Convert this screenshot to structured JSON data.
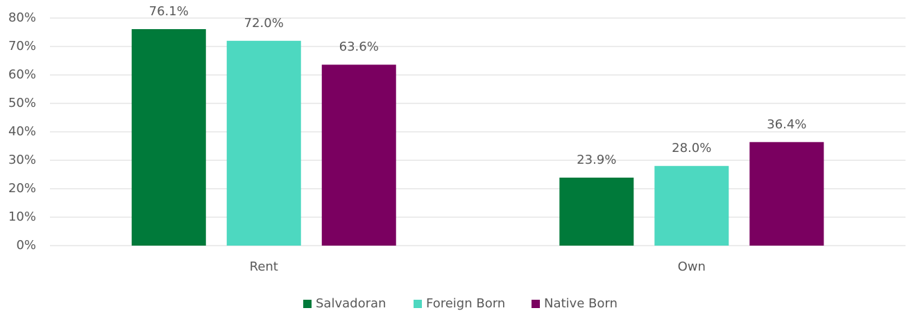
{
  "chart_data": {
    "type": "bar",
    "categories": [
      "Rent",
      "Own"
    ],
    "series": [
      {
        "name": "Salvadoran",
        "color": "#007a3a",
        "values": [
          76.1,
          23.9
        ],
        "value_labels": [
          "76.1%",
          "23.9%"
        ]
      },
      {
        "name": "Foreign Born",
        "color": "#4dd8c0",
        "values": [
          72.0,
          28.0
        ],
        "value_labels": [
          "72.0%",
          "28.0%"
        ]
      },
      {
        "name": "Native Born",
        "color": "#7a0060",
        "values": [
          63.6,
          36.4
        ],
        "value_labels": [
          "63.6%",
          "36.4%"
        ]
      }
    ],
    "ylim": [
      0,
      80
    ],
    "yticks": [
      {
        "value": 0,
        "label": "0%"
      },
      {
        "value": 10,
        "label": "10%"
      },
      {
        "value": 20,
        "label": "20%"
      },
      {
        "value": 30,
        "label": "30%"
      },
      {
        "value": 40,
        "label": "40%"
      },
      {
        "value": 50,
        "label": "50%"
      },
      {
        "value": 60,
        "label": "60%"
      },
      {
        "value": 70,
        "label": "70%"
      },
      {
        "value": 80,
        "label": "80%"
      }
    ],
    "grid": true,
    "legend": "bottom"
  }
}
